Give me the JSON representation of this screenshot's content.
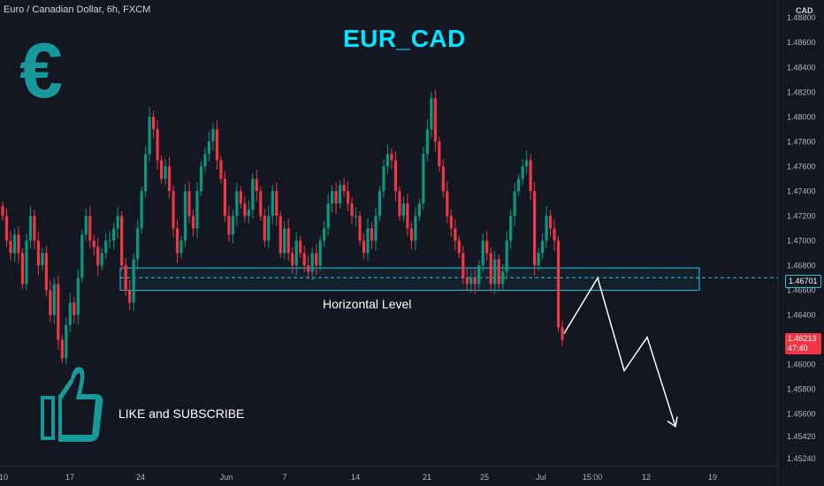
{
  "header": {
    "symbol_info": "Euro / Canadian Dollar, 6h, FXCM"
  },
  "title": "EUR_CAD",
  "logo": {
    "glyph": "€",
    "icon": "euro-icon",
    "color": "#17999a"
  },
  "annotations": {
    "horizontal_level_label": "Horizontal Level",
    "like_subscribe": "LIKE and SUBSCRIBE",
    "thumb_icon": "thumbs-up-icon"
  },
  "price_axis": {
    "currency": "CAD",
    "level_price": "1.46701",
    "current_price": "1.46213",
    "countdown": "47:40"
  },
  "colors": {
    "up": "#089981",
    "down": "#f23645",
    "accent": "#00e5ff",
    "zone": "#26c6da",
    "background": "#131722"
  },
  "chart_data": {
    "type": "candlestick",
    "interval": "6h",
    "ylim": [
      1.4524,
      1.4888
    ],
    "y_ticks": [
      "1.48800",
      "1.48600",
      "1.48400",
      "1.48200",
      "1.48000",
      "1.47800",
      "1.47600",
      "1.47400",
      "1.47200",
      "1.47000",
      "1.46800",
      "1.46600",
      "1.46400",
      "1.46200",
      "1.46000",
      "1.45800",
      "1.45600",
      "1.45420",
      "1.45240"
    ],
    "x_tick_labels": [
      "10",
      "17",
      "24",
      "Jun",
      "7",
      "14",
      "21",
      "25",
      "Jul",
      "15:00",
      "12",
      "19"
    ],
    "zone": {
      "low": 1.466,
      "high": 1.4678,
      "label": "Horizontal Level"
    },
    "projection": [
      1.4625,
      1.467,
      1.4595,
      1.4622,
      1.455
    ],
    "closes": [
      1.472,
      1.47,
      1.469,
      1.4705,
      1.469,
      1.4665,
      1.47,
      1.472,
      1.47,
      1.468,
      1.469,
      1.466,
      1.464,
      1.4665,
      1.462,
      1.4605,
      1.4632,
      1.465,
      1.464,
      1.467,
      1.4705,
      1.472,
      1.47,
      1.4695,
      1.468,
      1.469,
      1.47,
      1.47,
      1.471,
      1.472,
      1.468,
      1.466,
      1.465,
      1.4685,
      1.471,
      1.474,
      1.477,
      1.48,
      1.479,
      1.4765,
      1.475,
      1.476,
      1.474,
      1.471,
      1.469,
      1.47,
      1.474,
      1.472,
      1.471,
      1.474,
      1.476,
      1.477,
      1.478,
      1.479,
      1.4765,
      1.475,
      1.472,
      1.4705,
      1.472,
      1.474,
      1.473,
      1.472,
      1.4725,
      1.475,
      1.474,
      1.472,
      1.47,
      1.472,
      1.474,
      1.472,
      1.469,
      1.471,
      1.469,
      1.468,
      1.47,
      1.469,
      1.468,
      1.4675,
      1.469,
      1.468,
      1.47,
      1.471,
      1.473,
      1.474,
      1.473,
      1.4745,
      1.474,
      1.473,
      1.472,
      1.472,
      1.47,
      1.469,
      1.471,
      1.47,
      1.472,
      1.474,
      1.476,
      1.477,
      1.4765,
      1.474,
      1.472,
      1.473,
      1.471,
      1.47,
      1.472,
      1.473,
      1.477,
      1.479,
      1.4815,
      1.478,
      1.476,
      1.474,
      1.472,
      1.471,
      1.47,
      1.469,
      1.467,
      1.4665,
      1.467,
      1.4665,
      1.468,
      1.47,
      1.469,
      1.4665,
      1.4685,
      1.4665,
      1.4675,
      1.47,
      1.472,
      1.474,
      1.475,
      1.476,
      1.4765,
      1.474,
      1.468,
      1.469,
      1.47,
      1.472,
      1.471,
      1.47,
      1.463,
      1.462
    ]
  }
}
